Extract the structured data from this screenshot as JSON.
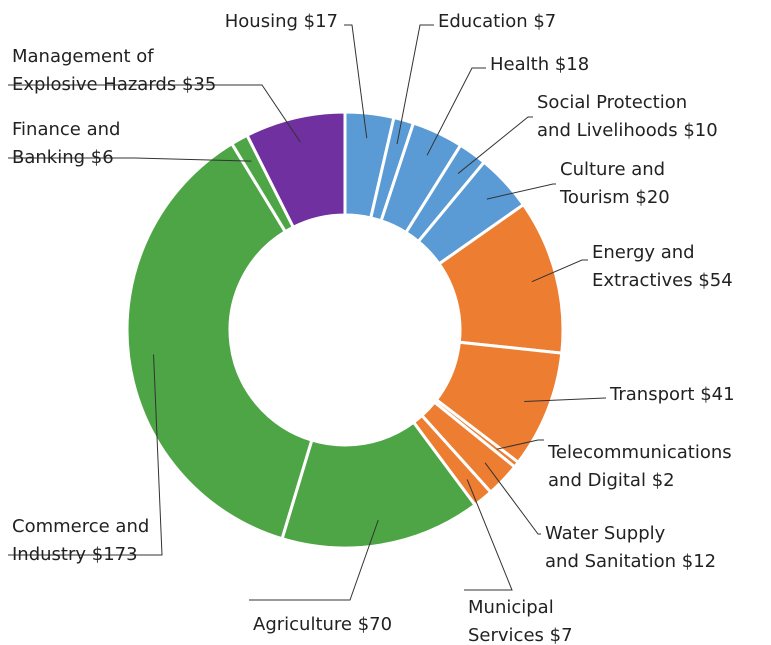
{
  "chart_data": {
    "type": "donut",
    "categories": [
      "Housing",
      "Education",
      "Health",
      [
        "Social Protection",
        "and Livelihoods"
      ],
      [
        "Culture and",
        "Tourism"
      ],
      [
        "Energy and",
        "Extractives"
      ],
      "Transport",
      [
        "Telecommunications",
        "and Digital"
      ],
      [
        "Water Supply",
        "and Sanitation"
      ],
      [
        "Municipal",
        "Services"
      ],
      "Agriculture",
      [
        "Commerce and",
        "Industry"
      ],
      [
        "Finance and",
        "Banking"
      ],
      [
        "Management of",
        "Explosive Hazards"
      ]
    ],
    "values": [
      17,
      7,
      18,
      10,
      20,
      54,
      41,
      2,
      12,
      7,
      70,
      173,
      6,
      35
    ],
    "value_labels": [
      "$17",
      "$7",
      "$18",
      "$10",
      "$20",
      "$54",
      "$41",
      "$2",
      "$12",
      "$7",
      "$70",
      "$173",
      "$6",
      "$35"
    ],
    "colors": [
      "#5b9bd5",
      "#5b9bd5",
      "#5b9bd5",
      "#5b9bd5",
      "#5b9bd5",
      "#ed7d31",
      "#ed7d31",
      "#ed7d31",
      "#ed7d31",
      "#ed7d31",
      "#4ea546",
      "#4ea546",
      "#4ea546",
      "#7030a0"
    ]
  }
}
